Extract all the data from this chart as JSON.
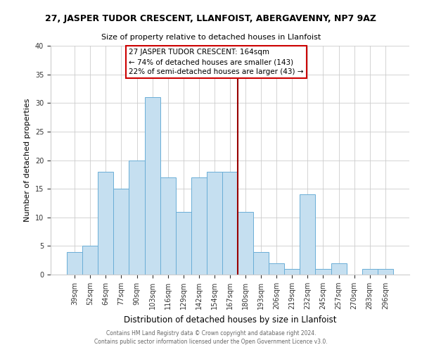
{
  "title": "27, JASPER TUDOR CRESCENT, LLANFOIST, ABERGAVENNY, NP7 9AZ",
  "subtitle": "Size of property relative to detached houses in Llanfoist",
  "xlabel": "Distribution of detached houses by size in Llanfoist",
  "ylabel": "Number of detached properties",
  "categories": [
    "39sqm",
    "52sqm",
    "64sqm",
    "77sqm",
    "90sqm",
    "103sqm",
    "116sqm",
    "129sqm",
    "142sqm",
    "154sqm",
    "167sqm",
    "180sqm",
    "193sqm",
    "206sqm",
    "219sqm",
    "232sqm",
    "245sqm",
    "257sqm",
    "270sqm",
    "283sqm",
    "296sqm"
  ],
  "values": [
    4,
    5,
    18,
    15,
    20,
    31,
    17,
    11,
    17,
    18,
    18,
    11,
    4,
    2,
    1,
    14,
    1,
    2,
    0,
    1,
    1
  ],
  "bar_color": "#c5dff0",
  "bar_edge_color": "#6aaed6",
  "vline_x": 10.5,
  "vline_color": "#990000",
  "annotation_title": "27 JASPER TUDOR CRESCENT: 164sqm",
  "annotation_line1": "← 74% of detached houses are smaller (143)",
  "annotation_line2": "22% of semi-detached houses are larger (43) →",
  "annotation_box_color": "#ffffff",
  "annotation_box_edge": "#cc0000",
  "ylim": [
    0,
    40
  ],
  "yticks": [
    0,
    5,
    10,
    15,
    20,
    25,
    30,
    35,
    40
  ],
  "footer1": "Contains HM Land Registry data © Crown copyright and database right 2024.",
  "footer2": "Contains public sector information licensed under the Open Government Licence v3.0.",
  "bg_color": "#ffffff",
  "grid_color": "#cccccc"
}
